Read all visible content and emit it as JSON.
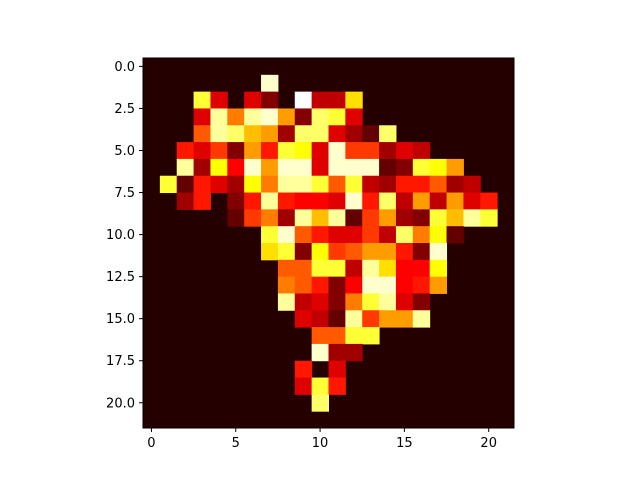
{
  "chart_data": {
    "type": "heatmap",
    "colormap": "hot",
    "nrows": 22,
    "ncols": 22,
    "vmin": 0,
    "vmax": 1,
    "x_ticks": [
      0,
      5,
      10,
      15,
      20
    ],
    "x_tick_labels": [
      "0",
      "5",
      "10",
      "15",
      "20"
    ],
    "y_ticks": [
      0,
      2.5,
      5,
      7.5,
      10,
      12.5,
      15,
      17.5,
      20
    ],
    "y_tick_labels": [
      "0.0",
      "2.5",
      "5.0",
      "7.5",
      "10.0",
      "12.5",
      "15.0",
      "17.5",
      "20.0"
    ],
    "xlim": [
      -0.5,
      21.5
    ],
    "ylim": [
      21.5,
      -0.5
    ],
    "cells": [
      [
        7,
        1,
        0.95
      ],
      [
        3,
        2,
        0.8
      ],
      [
        4,
        2,
        0.3
      ],
      [
        6,
        2,
        0.3
      ],
      [
        7,
        2,
        0.15
      ],
      [
        9,
        2,
        1.0
      ],
      [
        10,
        2,
        0.25
      ],
      [
        11,
        2,
        0.25
      ],
      [
        12,
        2,
        0.7
      ],
      [
        3,
        3,
        0.3
      ],
      [
        4,
        3,
        0.9
      ],
      [
        5,
        3,
        0.55
      ],
      [
        6,
        3,
        0.9
      ],
      [
        7,
        3,
        0.95
      ],
      [
        8,
        3,
        0.6
      ],
      [
        9,
        3,
        0.15
      ],
      [
        10,
        3,
        0.85
      ],
      [
        11,
        3,
        0.8
      ],
      [
        12,
        3,
        0.3
      ],
      [
        3,
        4,
        0.5
      ],
      [
        4,
        4,
        0.9
      ],
      [
        5,
        4,
        0.85
      ],
      [
        6,
        4,
        0.65
      ],
      [
        7,
        4,
        0.6
      ],
      [
        8,
        4,
        0.2
      ],
      [
        9,
        4,
        0.85
      ],
      [
        10,
        4,
        0.85
      ],
      [
        11,
        4,
        0.3
      ],
      [
        12,
        4,
        0.2
      ],
      [
        13,
        4,
        0.1
      ],
      [
        14,
        4,
        0.85
      ],
      [
        2,
        5,
        0.4
      ],
      [
        3,
        5,
        0.3
      ],
      [
        4,
        5,
        0.45
      ],
      [
        5,
        5,
        0.15
      ],
      [
        6,
        5,
        0.6
      ],
      [
        7,
        5,
        0.4
      ],
      [
        8,
        5,
        0.8
      ],
      [
        9,
        5,
        0.75
      ],
      [
        10,
        5,
        0.3
      ],
      [
        11,
        5,
        0.95
      ],
      [
        12,
        5,
        0.45
      ],
      [
        13,
        5,
        0.45
      ],
      [
        14,
        5,
        0.2
      ],
      [
        15,
        5,
        0.3
      ],
      [
        16,
        5,
        0.25
      ],
      [
        2,
        6,
        0.9
      ],
      [
        3,
        6,
        0.2
      ],
      [
        4,
        6,
        0.75
      ],
      [
        5,
        6,
        0.35
      ],
      [
        6,
        6,
        0.95
      ],
      [
        7,
        6,
        0.6
      ],
      [
        8,
        6,
        0.95
      ],
      [
        9,
        6,
        0.95
      ],
      [
        10,
        6,
        0.3
      ],
      [
        11,
        6,
        0.95
      ],
      [
        12,
        6,
        0.95
      ],
      [
        13,
        6,
        0.95
      ],
      [
        14,
        6,
        0.1
      ],
      [
        15,
        6,
        0.15
      ],
      [
        16,
        6,
        0.8
      ],
      [
        17,
        6,
        0.75
      ],
      [
        18,
        6,
        0.6
      ],
      [
        1,
        7,
        0.8
      ],
      [
        2,
        7,
        0.1
      ],
      [
        3,
        7,
        0.4
      ],
      [
        4,
        7,
        0.3
      ],
      [
        5,
        7,
        0.2
      ],
      [
        6,
        7,
        0.75
      ],
      [
        7,
        7,
        0.55
      ],
      [
        8,
        7,
        0.9
      ],
      [
        9,
        7,
        0.9
      ],
      [
        10,
        7,
        0.8
      ],
      [
        11,
        7,
        0.5
      ],
      [
        12,
        7,
        0.8
      ],
      [
        13,
        7,
        0.25
      ],
      [
        14,
        7,
        0.2
      ],
      [
        15,
        7,
        0.4
      ],
      [
        16,
        7,
        0.4
      ],
      [
        17,
        7,
        0.5
      ],
      [
        18,
        7,
        0.2
      ],
      [
        19,
        7,
        0.25
      ],
      [
        2,
        8,
        0.2
      ],
      [
        3,
        8,
        0.4
      ],
      [
        5,
        8,
        0.15
      ],
      [
        6,
        8,
        0.4
      ],
      [
        7,
        8,
        0.9
      ],
      [
        8,
        8,
        0.4
      ],
      [
        9,
        8,
        0.35
      ],
      [
        10,
        8,
        0.35
      ],
      [
        11,
        8,
        0.3
      ],
      [
        12,
        8,
        0.95
      ],
      [
        13,
        8,
        0.4
      ],
      [
        14,
        8,
        0.85
      ],
      [
        15,
        8,
        0.25
      ],
      [
        16,
        8,
        0.6
      ],
      [
        17,
        8,
        0.25
      ],
      [
        18,
        8,
        0.6
      ],
      [
        19,
        8,
        0.3
      ],
      [
        20,
        8,
        0.4
      ],
      [
        5,
        9,
        0.1
      ],
      [
        6,
        9,
        0.45
      ],
      [
        7,
        9,
        0.55
      ],
      [
        8,
        9,
        0.2
      ],
      [
        9,
        9,
        0.9
      ],
      [
        10,
        9,
        0.65
      ],
      [
        11,
        9,
        0.9
      ],
      [
        12,
        9,
        0.1
      ],
      [
        13,
        9,
        0.45
      ],
      [
        14,
        9,
        0.6
      ],
      [
        15,
        9,
        0.2
      ],
      [
        16,
        9,
        0.15
      ],
      [
        17,
        9,
        0.8
      ],
      [
        18,
        9,
        0.65
      ],
      [
        19,
        9,
        0.9
      ],
      [
        20,
        9,
        0.8
      ],
      [
        7,
        10,
        0.8
      ],
      [
        8,
        10,
        0.95
      ],
      [
        9,
        10,
        0.5
      ],
      [
        10,
        10,
        0.4
      ],
      [
        11,
        10,
        0.3
      ],
      [
        12,
        10,
        0.3
      ],
      [
        13,
        10,
        0.45
      ],
      [
        14,
        10,
        0.25
      ],
      [
        15,
        10,
        0.85
      ],
      [
        16,
        10,
        0.55
      ],
      [
        17,
        10,
        0.75
      ],
      [
        18,
        10,
        0.1
      ],
      [
        7,
        11,
        0.7
      ],
      [
        8,
        11,
        0.8
      ],
      [
        9,
        11,
        0.15
      ],
      [
        10,
        11,
        0.75
      ],
      [
        11,
        11,
        0.45
      ],
      [
        12,
        11,
        0.5
      ],
      [
        13,
        11,
        0.6
      ],
      [
        14,
        11,
        0.6
      ],
      [
        15,
        11,
        0.4
      ],
      [
        16,
        11,
        0.15
      ],
      [
        17,
        11,
        0.95
      ],
      [
        8,
        12,
        0.5
      ],
      [
        9,
        12,
        0.5
      ],
      [
        10,
        12,
        0.8
      ],
      [
        11,
        12,
        0.8
      ],
      [
        12,
        12,
        0.25
      ],
      [
        13,
        12,
        0.9
      ],
      [
        14,
        12,
        0.7
      ],
      [
        15,
        12,
        0.35
      ],
      [
        16,
        12,
        0.35
      ],
      [
        17,
        12,
        0.75
      ],
      [
        8,
        13,
        0.55
      ],
      [
        9,
        13,
        0.5
      ],
      [
        10,
        13,
        0.4
      ],
      [
        11,
        13,
        0.15
      ],
      [
        12,
        13,
        0.35
      ],
      [
        13,
        13,
        0.95
      ],
      [
        14,
        13,
        0.95
      ],
      [
        15,
        13,
        0.35
      ],
      [
        16,
        13,
        0.4
      ],
      [
        17,
        13,
        0.6
      ],
      [
        8,
        14,
        0.9
      ],
      [
        9,
        14,
        0.25
      ],
      [
        10,
        14,
        0.3
      ],
      [
        11,
        14,
        0.15
      ],
      [
        12,
        14,
        0.55
      ],
      [
        13,
        14,
        0.8
      ],
      [
        14,
        14,
        0.9
      ],
      [
        15,
        14,
        0.3
      ],
      [
        16,
        14,
        0.15
      ],
      [
        9,
        15,
        0.3
      ],
      [
        10,
        15,
        0.25
      ],
      [
        11,
        15,
        0.1
      ],
      [
        12,
        15,
        0.9
      ],
      [
        13,
        15,
        0.45
      ],
      [
        14,
        15,
        0.6
      ],
      [
        15,
        15,
        0.6
      ],
      [
        16,
        15,
        0.9
      ],
      [
        10,
        16,
        0.5
      ],
      [
        11,
        16,
        0.5
      ],
      [
        12,
        16,
        0.8
      ],
      [
        13,
        16,
        0.8
      ],
      [
        10,
        17,
        0.95
      ],
      [
        11,
        17,
        0.2
      ],
      [
        12,
        17,
        0.2
      ],
      [
        9,
        18,
        0.4
      ],
      [
        11,
        18,
        0.3
      ],
      [
        9,
        19,
        0.3
      ],
      [
        10,
        19,
        0.8
      ],
      [
        11,
        19,
        0.4
      ],
      [
        10,
        20,
        0.85
      ]
    ]
  }
}
